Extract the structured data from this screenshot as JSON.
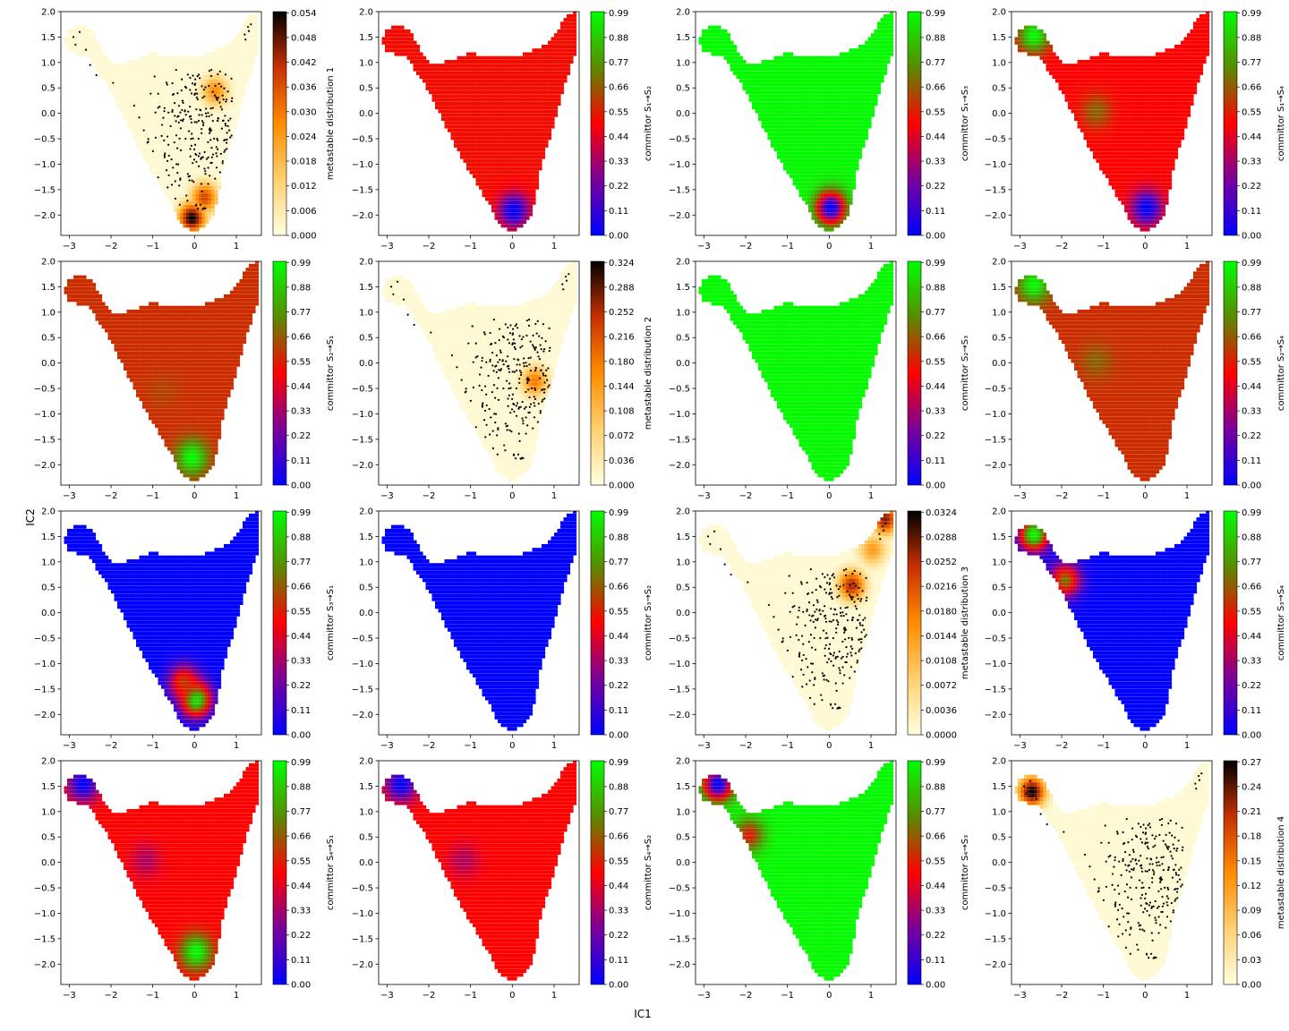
{
  "figure": {
    "xlabel": "IC1",
    "ylabel": "IC2"
  },
  "colors": {
    "committor_cmap": [
      "#0000ff",
      "#7a0099",
      "#ff0000",
      "#5a8a00",
      "#00ff00"
    ],
    "metastable_cmap": [
      "#ffffe0",
      "#ffd070",
      "#ff8c00",
      "#c83000",
      "#000000"
    ],
    "scatter_dots": "#000000"
  },
  "chart_data": [
    {
      "type": "heatmap",
      "kind": "metastable",
      "colorbar_label": "metastable distribution 1",
      "xlim": [
        -3.2,
        1.6
      ],
      "ylim": [
        -2.4,
        2.0
      ],
      "xticks": [
        -3,
        -2,
        -1,
        0,
        1
      ],
      "yticks": [
        -2.0,
        -1.5,
        -1.0,
        -0.5,
        0.0,
        0.5,
        1.0,
        1.5,
        2.0
      ],
      "cb_ticks": [
        "0.000",
        "0.006",
        "0.012",
        "0.018",
        "0.024",
        "0.030",
        "0.036",
        "0.042",
        "0.048",
        "0.054"
      ],
      "cb_max": 0.054,
      "hotspots": [
        {
          "x": -0.1,
          "y": -2.1,
          "value": 1.0
        },
        {
          "x": 0.2,
          "y": -1.7,
          "value": 0.7
        },
        {
          "x": 0.45,
          "y": 0.4,
          "value": 0.5
        }
      ]
    },
    {
      "type": "heatmap",
      "kind": "committor",
      "colorbar_label": "committor S₁→S₂",
      "xlim": [
        -3.2,
        1.6
      ],
      "ylim": [
        -2.4,
        2.0
      ],
      "xticks": [
        -3,
        -2,
        -1,
        0,
        1
      ],
      "yticks": [
        -2.0,
        -1.5,
        -1.0,
        -0.5,
        0.0,
        0.5,
        1.0,
        1.5,
        2.0
      ],
      "cb_ticks": [
        "0.00",
        "0.11",
        "0.22",
        "0.33",
        "0.44",
        "0.55",
        "0.66",
        "0.77",
        "0.88",
        "0.99"
      ],
      "base": 0.52,
      "patches": [
        {
          "x": 0.0,
          "y": -1.95,
          "value": 0.0
        }
      ]
    },
    {
      "type": "heatmap",
      "kind": "committor",
      "colorbar_label": "committor S₁→S₃",
      "xlim": [
        -3.2,
        1.6
      ],
      "ylim": [
        -2.4,
        2.0
      ],
      "xticks": [
        -3,
        -2,
        -1,
        0,
        1
      ],
      "yticks": [
        -2.0,
        -1.5,
        -1.0,
        -0.5,
        0.0,
        0.5,
        1.0,
        1.5,
        2.0
      ],
      "cb_ticks": [
        "0.00",
        "0.11",
        "0.22",
        "0.33",
        "0.44",
        "0.55",
        "0.66",
        "0.77",
        "0.88",
        "0.99"
      ],
      "base": 0.99,
      "patches": [
        {
          "x": 0.0,
          "y": -1.9,
          "value": 0.0
        }
      ]
    },
    {
      "type": "heatmap",
      "kind": "committor",
      "colorbar_label": "committor S₁→S₄",
      "xlim": [
        -3.2,
        1.6
      ],
      "ylim": [
        -2.4,
        2.0
      ],
      "xticks": [
        -3,
        -2,
        -1,
        0,
        1
      ],
      "yticks": [
        -2.0,
        -1.5,
        -1.0,
        -0.5,
        0.0,
        0.5,
        1.0,
        1.5,
        2.0
      ],
      "cb_ticks": [
        "0.00",
        "0.11",
        "0.22",
        "0.33",
        "0.44",
        "0.55",
        "0.66",
        "0.77",
        "0.88",
        "0.99"
      ],
      "base": 0.5,
      "patches": [
        {
          "x": -2.7,
          "y": 1.5,
          "value": 0.99
        },
        {
          "x": -1.2,
          "y": 0.0,
          "value": 0.68
        },
        {
          "x": 0.0,
          "y": -1.9,
          "value": 0.0
        }
      ]
    },
    {
      "type": "heatmap",
      "kind": "committor",
      "colorbar_label": "committor S₂→S₁",
      "xlim": [
        -3.2,
        1.6
      ],
      "ylim": [
        -2.4,
        2.0
      ],
      "xticks": [
        -3,
        -2,
        -1,
        0,
        1
      ],
      "yticks": [
        -2.0,
        -1.5,
        -1.0,
        -0.5,
        0.0,
        0.5,
        1.0,
        1.5,
        2.0
      ],
      "cb_ticks": [
        "0.00",
        "0.11",
        "0.22",
        "0.33",
        "0.44",
        "0.55",
        "0.66",
        "0.77",
        "0.88",
        "0.99"
      ],
      "base": 0.58,
      "patches": [
        {
          "x": -0.1,
          "y": -1.9,
          "value": 0.99
        },
        {
          "x": -0.8,
          "y": -0.6,
          "value": 0.62
        }
      ]
    },
    {
      "type": "heatmap",
      "kind": "metastable",
      "colorbar_label": "metastable distribution 2",
      "xlim": [
        -3.2,
        1.6
      ],
      "ylim": [
        -2.4,
        2.0
      ],
      "xticks": [
        -3,
        -2,
        -1,
        0,
        1
      ],
      "yticks": [
        -2.0,
        -1.5,
        -1.0,
        -0.5,
        0.0,
        0.5,
        1.0,
        1.5,
        2.0
      ],
      "cb_ticks": [
        "0.000",
        "0.036",
        "0.072",
        "0.108",
        "0.144",
        "0.180",
        "0.216",
        "0.252",
        "0.288",
        "0.324"
      ],
      "cb_max": 0.324,
      "hotspots": [
        {
          "x": 0.5,
          "y": -0.4,
          "value": 0.55
        }
      ]
    },
    {
      "type": "heatmap",
      "kind": "committor",
      "colorbar_label": "committor S₂→S₃",
      "xlim": [
        -3.2,
        1.6
      ],
      "ylim": [
        -2.4,
        2.0
      ],
      "xticks": [
        -3,
        -2,
        -1,
        0,
        1
      ],
      "yticks": [
        -2.0,
        -1.5,
        -1.0,
        -0.5,
        0.0,
        0.5,
        1.0,
        1.5,
        2.0
      ],
      "cb_ticks": [
        "0.00",
        "0.11",
        "0.22",
        "0.33",
        "0.44",
        "0.55",
        "0.66",
        "0.77",
        "0.88",
        "0.99"
      ],
      "base": 0.99,
      "patches": []
    },
    {
      "type": "heatmap",
      "kind": "committor",
      "colorbar_label": "committor S₂→S₄",
      "xlim": [
        -3.2,
        1.6
      ],
      "ylim": [
        -2.4,
        2.0
      ],
      "xticks": [
        -3,
        -2,
        -1,
        0,
        1
      ],
      "yticks": [
        -2.0,
        -1.5,
        -1.0,
        -0.5,
        0.0,
        0.5,
        1.0,
        1.5,
        2.0
      ],
      "cb_ticks": [
        "0.00",
        "0.11",
        "0.22",
        "0.33",
        "0.44",
        "0.55",
        "0.66",
        "0.77",
        "0.88",
        "0.99"
      ],
      "base": 0.58,
      "patches": [
        {
          "x": -2.7,
          "y": 1.5,
          "value": 0.99
        },
        {
          "x": -1.2,
          "y": 0.0,
          "value": 0.68
        }
      ]
    },
    {
      "type": "heatmap",
      "kind": "committor",
      "colorbar_label": "committor S₃→S₁",
      "xlim": [
        -3.2,
        1.6
      ],
      "ylim": [
        -2.4,
        2.0
      ],
      "xticks": [
        -3,
        -2,
        -1,
        0,
        1
      ],
      "yticks": [
        -2.0,
        -1.5,
        -1.0,
        -0.5,
        0.0,
        0.5,
        1.0,
        1.5,
        2.0
      ],
      "cb_ticks": [
        "0.00",
        "0.11",
        "0.22",
        "0.33",
        "0.44",
        "0.55",
        "0.66",
        "0.77",
        "0.88",
        "0.99"
      ],
      "base": 0.0,
      "patches": [
        {
          "x": 0.0,
          "y": -1.75,
          "value": 0.99
        },
        {
          "x": -0.3,
          "y": -1.4,
          "value": 0.6
        }
      ]
    },
    {
      "type": "heatmap",
      "kind": "committor",
      "colorbar_label": "committor S₃→S₂",
      "xlim": [
        -3.2,
        1.6
      ],
      "ylim": [
        -2.4,
        2.0
      ],
      "xticks": [
        -3,
        -2,
        -1,
        0,
        1
      ],
      "yticks": [
        -2.0,
        -1.5,
        -1.0,
        -0.5,
        0.0,
        0.5,
        1.0,
        1.5,
        2.0
      ],
      "cb_ticks": [
        "0.00",
        "0.11",
        "0.22",
        "0.33",
        "0.44",
        "0.55",
        "0.66",
        "0.77",
        "0.88",
        "0.99"
      ],
      "base": 0.0,
      "patches": []
    },
    {
      "type": "heatmap",
      "kind": "metastable",
      "colorbar_label": "metastable distribution 3",
      "xlim": [
        -3.2,
        1.6
      ],
      "ylim": [
        -2.4,
        2.0
      ],
      "xticks": [
        -3,
        -2,
        -1,
        0,
        1
      ],
      "yticks": [
        -2.0,
        -1.5,
        -1.0,
        -0.5,
        0.0,
        0.5,
        1.0,
        1.5,
        2.0
      ],
      "cb_ticks": [
        "0.0000",
        "0.0036",
        "0.0072",
        "0.0108",
        "0.0144",
        "0.0180",
        "0.0216",
        "0.0252",
        "0.0288",
        "0.0324"
      ],
      "cb_max": 0.0324,
      "hotspots": [
        {
          "x": 1.3,
          "y": 1.8,
          "value": 0.85
        },
        {
          "x": 0.5,
          "y": 0.5,
          "value": 0.8
        },
        {
          "x": 1.0,
          "y": 1.2,
          "value": 0.45
        }
      ]
    },
    {
      "type": "heatmap",
      "kind": "committor",
      "colorbar_label": "committor S₃→S₄",
      "xlim": [
        -3.2,
        1.6
      ],
      "ylim": [
        -2.4,
        2.0
      ],
      "xticks": [
        -3,
        -2,
        -1,
        0,
        1
      ],
      "yticks": [
        -2.0,
        -1.5,
        -1.0,
        -0.5,
        0.0,
        0.5,
        1.0,
        1.5,
        2.0
      ],
      "cb_ticks": [
        "0.00",
        "0.11",
        "0.22",
        "0.33",
        "0.44",
        "0.55",
        "0.66",
        "0.77",
        "0.88",
        "0.99"
      ],
      "base": 0.0,
      "patches": [
        {
          "x": -2.7,
          "y": 1.5,
          "value": 0.99
        },
        {
          "x": -1.95,
          "y": 0.6,
          "value": 0.7
        }
      ]
    },
    {
      "type": "heatmap",
      "kind": "committor",
      "colorbar_label": "committor S₄→S₁",
      "xlim": [
        -3.2,
        1.6
      ],
      "ylim": [
        -2.4,
        2.0
      ],
      "xticks": [
        -3,
        -2,
        -1,
        0,
        1
      ],
      "yticks": [
        -2.0,
        -1.5,
        -1.0,
        -0.5,
        0.0,
        0.5,
        1.0,
        1.5,
        2.0
      ],
      "cb_ticks": [
        "0.00",
        "0.11",
        "0.22",
        "0.33",
        "0.44",
        "0.55",
        "0.66",
        "0.77",
        "0.88",
        "0.99"
      ],
      "base": 0.5,
      "patches": [
        {
          "x": -2.7,
          "y": 1.5,
          "value": 0.0
        },
        {
          "x": -1.2,
          "y": 0.0,
          "value": 0.35
        },
        {
          "x": 0.0,
          "y": -1.8,
          "value": 0.99
        }
      ]
    },
    {
      "type": "heatmap",
      "kind": "committor",
      "colorbar_label": "committor S₄→S₂",
      "xlim": [
        -3.2,
        1.6
      ],
      "ylim": [
        -2.4,
        2.0
      ],
      "xticks": [
        -3,
        -2,
        -1,
        0,
        1
      ],
      "yticks": [
        -2.0,
        -1.5,
        -1.0,
        -0.5,
        0.0,
        0.5,
        1.0,
        1.5,
        2.0
      ],
      "cb_ticks": [
        "0.00",
        "0.11",
        "0.22",
        "0.33",
        "0.44",
        "0.55",
        "0.66",
        "0.77",
        "0.88",
        "0.99"
      ],
      "base": 0.5,
      "patches": [
        {
          "x": -2.7,
          "y": 1.5,
          "value": 0.0
        },
        {
          "x": -1.2,
          "y": 0.0,
          "value": 0.35
        }
      ]
    },
    {
      "type": "heatmap",
      "kind": "committor",
      "colorbar_label": "committor S₄→S₃",
      "xlim": [
        -3.2,
        1.6
      ],
      "ylim": [
        -2.4,
        2.0
      ],
      "xticks": [
        -3,
        -2,
        -1,
        0,
        1
      ],
      "yticks": [
        -2.0,
        -1.5,
        -1.0,
        -0.5,
        0.0,
        0.5,
        1.0,
        1.5,
        2.0
      ],
      "cb_ticks": [
        "0.00",
        "0.11",
        "0.22",
        "0.33",
        "0.44",
        "0.55",
        "0.66",
        "0.77",
        "0.88",
        "0.99"
      ],
      "base": 0.99,
      "patches": [
        {
          "x": -2.7,
          "y": 1.5,
          "value": 0.0
        },
        {
          "x": -1.95,
          "y": 0.5,
          "value": 0.55
        }
      ]
    },
    {
      "type": "heatmap",
      "kind": "metastable",
      "colorbar_label": "metastable distribution 4",
      "xlim": [
        -3.2,
        1.6
      ],
      "ylim": [
        -2.4,
        2.0
      ],
      "xticks": [
        -3,
        -2,
        -1,
        0,
        1
      ],
      "yticks": [
        -2.0,
        -1.5,
        -1.0,
        -0.5,
        0.0,
        0.5,
        1.0,
        1.5,
        2.0
      ],
      "cb_ticks": [
        "0.00",
        "0.03",
        "0.06",
        "0.09",
        "0.12",
        "0.15",
        "0.18",
        "0.21",
        "0.24",
        "0.27"
      ],
      "cb_max": 0.27,
      "hotspots": [
        {
          "x": -2.75,
          "y": 1.35,
          "value": 1.0
        }
      ]
    }
  ]
}
